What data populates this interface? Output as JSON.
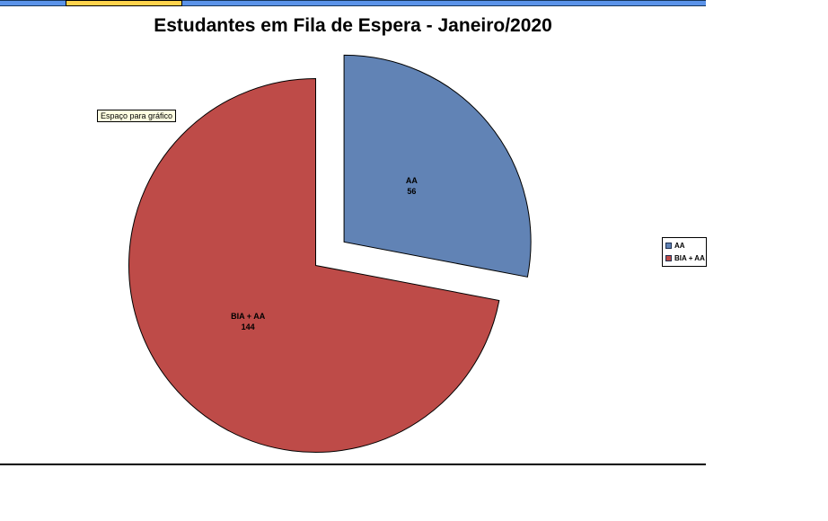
{
  "chart_data": {
    "type": "pie",
    "title": "Estudantes em Fila de Espera - Janeiro/2020",
    "categories": [
      "AA",
      "BIA + AA"
    ],
    "values": [
      56,
      144
    ],
    "colors": [
      "#6183b5",
      "#be4b48"
    ],
    "slice_outline_color": "#000000",
    "exploded_slice": "AA",
    "data_labels": [
      {
        "name": "AA",
        "value": "56"
      },
      {
        "name": "BIA + AA",
        "value": "144"
      }
    ],
    "legend_position": "right"
  },
  "placeholder": {
    "label": "Espaço para gráfico"
  },
  "window_chrome": {
    "strip_blue_color": "#5b93e9",
    "strip_yellow_color": "#ffd34d"
  }
}
